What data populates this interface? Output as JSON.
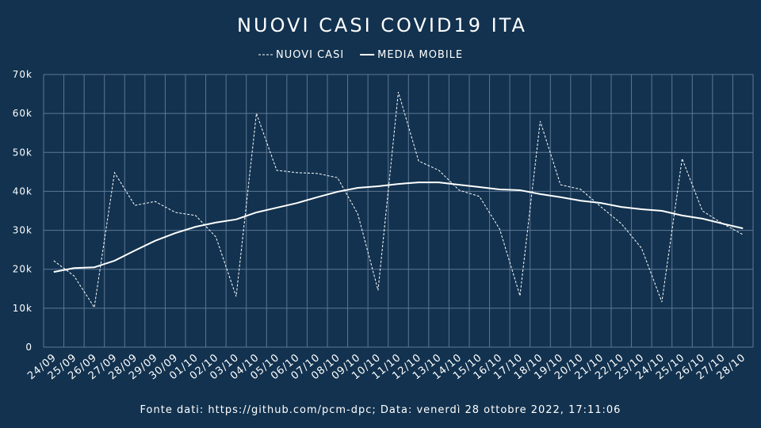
{
  "chart_data": {
    "type": "line",
    "title": "NUOVI CASI COVID19 ITA",
    "footer": "Fonte dati: https://github.com/pcm-dpc; Data: venerdì 28 ottobre 2022, 17:11:06",
    "categories": [
      "24/09",
      "25/09",
      "26/09",
      "27/09",
      "28/09",
      "29/09",
      "30/09",
      "01/10",
      "02/10",
      "03/10",
      "04/10",
      "05/10",
      "06/10",
      "07/10",
      "08/10",
      "09/10",
      "10/10",
      "11/10",
      "12/10",
      "13/10",
      "14/10",
      "15/10",
      "16/10",
      "17/10",
      "18/10",
      "19/10",
      "20/10",
      "21/10",
      "22/10",
      "23/10",
      "24/10",
      "25/10",
      "26/10",
      "27/10",
      "28/10"
    ],
    "series": [
      {
        "name": "NUOVI CASI",
        "color": "#ffffff",
        "dashed": true,
        "values": [
          22200,
          18300,
          10200,
          44800,
          36400,
          37400,
          34600,
          33800,
          28300,
          13000,
          60000,
          45400,
          44800,
          44600,
          43500,
          34200,
          14600,
          65500,
          47800,
          45400,
          40300,
          38700,
          30300,
          13200,
          58000,
          41700,
          40500,
          36000,
          31700,
          25400,
          11600,
          48400,
          35000,
          31700,
          28900
        ]
      },
      {
        "name": "MEDIA MOBILE",
        "color": "#ffffff",
        "dashed": false,
        "values": [
          19300,
          20300,
          20500,
          22200,
          24800,
          27300,
          29300,
          30900,
          32000,
          32800,
          34600,
          35800,
          37000,
          38500,
          39900,
          40900,
          41300,
          41900,
          42300,
          42300,
          41700,
          41100,
          40500,
          40300,
          39300,
          38500,
          37600,
          37000,
          36000,
          35400,
          35000,
          33800,
          33000,
          31700,
          30500
        ]
      }
    ],
    "ylim": [
      0,
      70000
    ],
    "yticks": [
      0,
      {
        "value": 10000,
        "label": "10k"
      },
      {
        "value": 20000,
        "label": "20k"
      },
      {
        "value": 30000,
        "label": "30k"
      },
      {
        "value": 40000,
        "label": "40k"
      },
      {
        "value": 50000,
        "label": "50k"
      },
      {
        "value": 60000,
        "label": "60k"
      },
      {
        "value": 70000,
        "label": "70k"
      }
    ],
    "grid": true
  }
}
